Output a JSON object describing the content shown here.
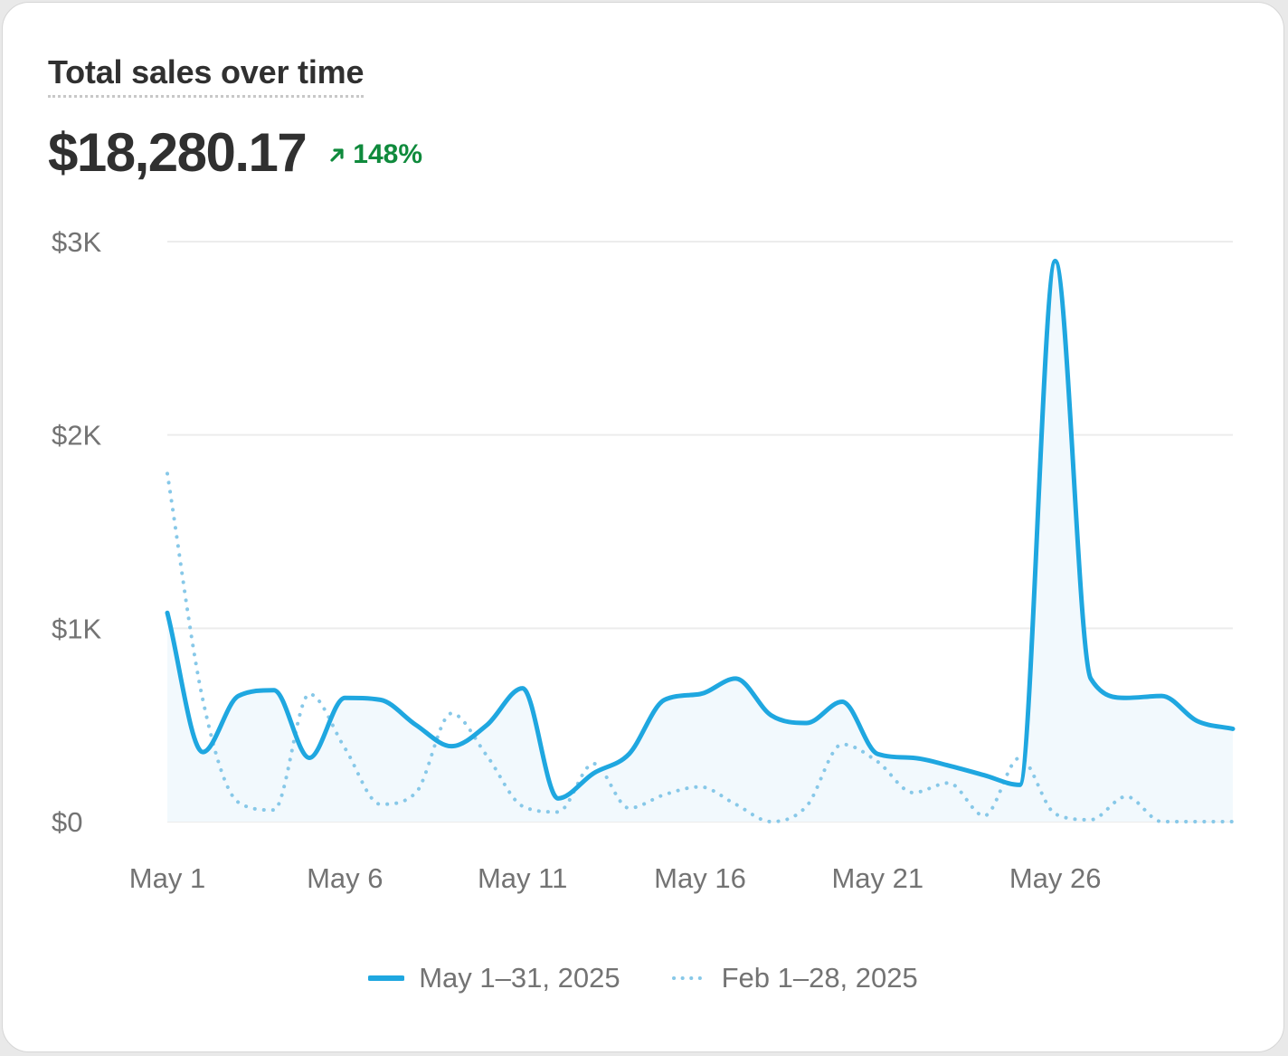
{
  "card": {
    "title": "Total sales over time",
    "total": "$18,280.17",
    "change": "148%",
    "change_direction": "up",
    "change_color": "#0f8a3c"
  },
  "chart_data": {
    "type": "line",
    "title": "Total sales over time",
    "xlabel": "",
    "ylabel": "",
    "ylim": [
      0,
      3000
    ],
    "y_ticks": [
      0,
      1000,
      2000,
      3000
    ],
    "y_tick_labels": [
      "$0",
      "$1K",
      "$2K",
      "$3K"
    ],
    "x_tick_labels": [
      "May 1",
      "May 6",
      "May 11",
      "May 16",
      "May 21",
      "May 26"
    ],
    "x_tick_days": [
      1,
      6,
      11,
      16,
      21,
      26
    ],
    "x_range_days": [
      1,
      31
    ],
    "grid": true,
    "legend_position": "bottom",
    "series": [
      {
        "name": "May 1–31, 2025",
        "style": "solid",
        "color": "#1fa7e0",
        "area_fill": "#f2f9fd",
        "x": [
          1,
          2,
          3,
          4,
          5,
          6,
          7,
          8,
          9,
          10,
          11,
          12,
          13,
          14,
          15,
          16,
          17,
          18,
          19,
          20,
          21,
          22,
          23,
          24,
          25,
          26,
          27,
          28,
          29,
          30,
          31
        ],
        "values": [
          1080,
          360,
          650,
          680,
          330,
          640,
          630,
          500,
          390,
          500,
          690,
          120,
          250,
          350,
          630,
          660,
          740,
          550,
          510,
          620,
          350,
          330,
          290,
          240,
          190,
          2900,
          740,
          640,
          650,
          520,
          480
        ]
      },
      {
        "name": "Feb 1–28, 2025",
        "style": "dotted",
        "color": "#87c8e8",
        "x": [
          1,
          2,
          3,
          4,
          5,
          6,
          7,
          8,
          9,
          10,
          11,
          12,
          13,
          14,
          15,
          16,
          17,
          18,
          19,
          20,
          21,
          22,
          23,
          24,
          25,
          26,
          27,
          28,
          29,
          30,
          31
        ],
        "values": [
          1800,
          630,
          100,
          60,
          660,
          380,
          90,
          150,
          560,
          340,
          80,
          50,
          300,
          70,
          140,
          180,
          90,
          0,
          80,
          400,
          310,
          150,
          200,
          30,
          330,
          40,
          10,
          130,
          0,
          0,
          0
        ]
      }
    ]
  }
}
